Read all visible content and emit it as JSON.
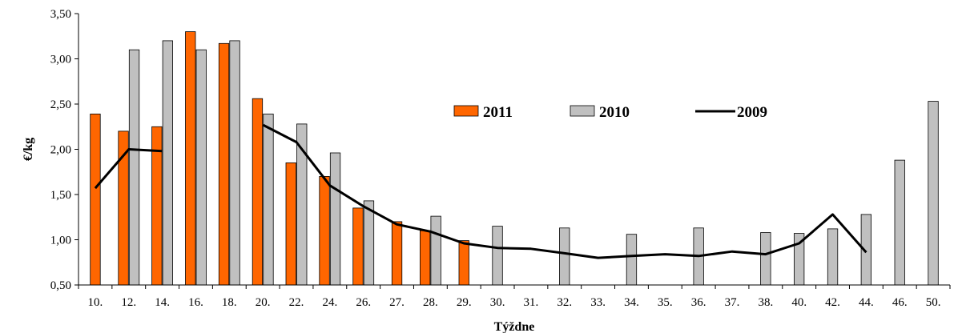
{
  "chart_data": {
    "type": "bar",
    "title": "",
    "xlabel": "Týždne",
    "ylabel": "€/kg",
    "ylim": [
      0.5,
      3.5
    ],
    "yticks": [
      0.5,
      1.0,
      1.5,
      2.0,
      2.5,
      3.0,
      3.5
    ],
    "ytick_labels": [
      "0,50",
      "1,00",
      "1,50",
      "2,00",
      "2,50",
      "3,00",
      "3,50"
    ],
    "grid": false,
    "legend_position": "top-center",
    "categories": [
      "10.",
      "12.",
      "14.",
      "16.",
      "18.",
      "20.",
      "22.",
      "24.",
      "26.",
      "27.",
      "28.",
      "29.",
      "30.",
      "31.",
      "32.",
      "33.",
      "34.",
      "35.",
      "36.",
      "37.",
      "38.",
      "40.",
      "42.",
      "44.",
      "46.",
      "50."
    ],
    "series": [
      {
        "name": "2011",
        "type": "bar",
        "color": "#ff6600",
        "values": [
          2.39,
          2.2,
          2.25,
          3.3,
          3.17,
          2.56,
          1.85,
          1.7,
          1.35,
          1.2,
          1.1,
          0.99,
          null,
          null,
          null,
          null,
          null,
          null,
          null,
          null,
          null,
          null,
          null,
          null,
          null,
          null
        ]
      },
      {
        "name": "2010",
        "type": "bar",
        "color": "#c0c0c0",
        "values": [
          null,
          3.1,
          3.2,
          3.1,
          3.2,
          2.39,
          2.28,
          1.96,
          1.43,
          null,
          1.26,
          null,
          1.15,
          null,
          1.13,
          null,
          1.06,
          null,
          1.13,
          null,
          1.08,
          1.07,
          1.12,
          1.28,
          1.88,
          2.53
        ]
      },
      {
        "name": "2009",
        "type": "line",
        "color": "#000000",
        "values": [
          1.57,
          2.0,
          1.98,
          null,
          null,
          2.27,
          2.08,
          1.6,
          1.37,
          1.17,
          1.09,
          0.96,
          0.91,
          0.9,
          0.85,
          0.8,
          0.82,
          0.84,
          0.82,
          0.87,
          0.84,
          0.96,
          1.28,
          0.86,
          null,
          null
        ]
      }
    ]
  }
}
